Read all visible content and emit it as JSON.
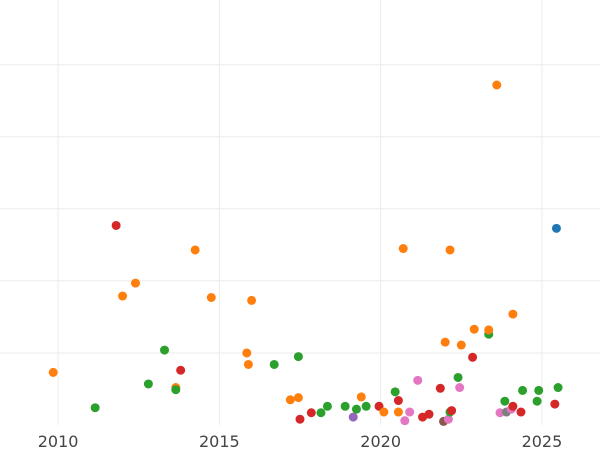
{
  "chart_data": {
    "type": "scatter",
    "xlim": [
      2008.2,
      2026.8
    ],
    "ylim": [
      0,
      590
    ],
    "xticks": [
      {
        "value": 2010,
        "label": "2010"
      },
      {
        "value": 2015,
        "label": "2015"
      },
      {
        "value": 2020,
        "label": "2020"
      },
      {
        "value": 2025,
        "label": "2025"
      }
    ],
    "ygrid": [
      100,
      200,
      300,
      400,
      500
    ],
    "grid": true,
    "colors": {
      "orange": "#ff7f0e",
      "red": "#d62728",
      "green": "#2ca02c",
      "purple": "#9467bd",
      "pink": "#e377c2",
      "blue": "#1f77b4",
      "brown": "#8c564b",
      "gray": "#7f7f7f"
    },
    "points": [
      {
        "x": 2009.85,
        "y": 73,
        "color": "orange"
      },
      {
        "x": 2011.15,
        "y": 24,
        "color": "green"
      },
      {
        "x": 2011.8,
        "y": 277,
        "color": "red"
      },
      {
        "x": 2012.0,
        "y": 179,
        "color": "orange"
      },
      {
        "x": 2012.4,
        "y": 197,
        "color": "orange"
      },
      {
        "x": 2012.8,
        "y": 57,
        "color": "green"
      },
      {
        "x": 2013.3,
        "y": 104,
        "color": "green"
      },
      {
        "x": 2013.65,
        "y": 52,
        "color": "orange"
      },
      {
        "x": 2013.65,
        "y": 49,
        "color": "green"
      },
      {
        "x": 2013.8,
        "y": 76,
        "color": "red"
      },
      {
        "x": 2014.25,
        "y": 243,
        "color": "orange"
      },
      {
        "x": 2014.75,
        "y": 177,
        "color": "orange"
      },
      {
        "x": 2015.85,
        "y": 100,
        "color": "orange"
      },
      {
        "x": 2015.9,
        "y": 84,
        "color": "orange"
      },
      {
        "x": 2016.0,
        "y": 173,
        "color": "orange"
      },
      {
        "x": 2016.7,
        "y": 84,
        "color": "green"
      },
      {
        "x": 2017.2,
        "y": 35,
        "color": "orange"
      },
      {
        "x": 2017.45,
        "y": 38,
        "color": "orange"
      },
      {
        "x": 2017.45,
        "y": 95,
        "color": "green"
      },
      {
        "x": 2017.5,
        "y": 8,
        "color": "red"
      },
      {
        "x": 2017.85,
        "y": 17,
        "color": "red"
      },
      {
        "x": 2018.15,
        "y": 17,
        "color": "green"
      },
      {
        "x": 2018.35,
        "y": 26,
        "color": "green"
      },
      {
        "x": 2018.9,
        "y": 26,
        "color": "green"
      },
      {
        "x": 2019.15,
        "y": 11,
        "color": "purple"
      },
      {
        "x": 2019.25,
        "y": 22,
        "color": "green"
      },
      {
        "x": 2019.4,
        "y": 39,
        "color": "orange"
      },
      {
        "x": 2019.55,
        "y": 26,
        "color": "green"
      },
      {
        "x": 2019.95,
        "y": 26,
        "color": "red"
      },
      {
        "x": 2020.1,
        "y": 18,
        "color": "orange"
      },
      {
        "x": 2020.45,
        "y": 46,
        "color": "green"
      },
      {
        "x": 2020.55,
        "y": 34,
        "color": "red"
      },
      {
        "x": 2020.55,
        "y": 18,
        "color": "orange"
      },
      {
        "x": 2020.7,
        "y": 245,
        "color": "orange"
      },
      {
        "x": 2020.75,
        "y": 6,
        "color": "pink"
      },
      {
        "x": 2020.9,
        "y": 18,
        "color": "pink"
      },
      {
        "x": 2021.15,
        "y": 62,
        "color": "pink"
      },
      {
        "x": 2021.3,
        "y": 11,
        "color": "red"
      },
      {
        "x": 2021.5,
        "y": 15,
        "color": "red"
      },
      {
        "x": 2021.85,
        "y": 51,
        "color": "red"
      },
      {
        "x": 2021.95,
        "y": 5,
        "color": "brown"
      },
      {
        "x": 2022.0,
        "y": 115,
        "color": "orange"
      },
      {
        "x": 2022.1,
        "y": 8,
        "color": "pink"
      },
      {
        "x": 2022.15,
        "y": 18,
        "color": "green"
      },
      {
        "x": 2022.15,
        "y": 243,
        "color": "orange"
      },
      {
        "x": 2022.2,
        "y": 20,
        "color": "red"
      },
      {
        "x": 2022.4,
        "y": 66,
        "color": "green"
      },
      {
        "x": 2022.45,
        "y": 52,
        "color": "pink"
      },
      {
        "x": 2022.5,
        "y": 111,
        "color": "orange"
      },
      {
        "x": 2022.85,
        "y": 94,
        "color": "red"
      },
      {
        "x": 2022.9,
        "y": 133,
        "color": "orange"
      },
      {
        "x": 2023.35,
        "y": 126,
        "color": "green"
      },
      {
        "x": 2023.35,
        "y": 132,
        "color": "orange"
      },
      {
        "x": 2023.6,
        "y": 472,
        "color": "orange"
      },
      {
        "x": 2023.7,
        "y": 17,
        "color": "pink"
      },
      {
        "x": 2023.85,
        "y": 33,
        "color": "green"
      },
      {
        "x": 2023.9,
        "y": 18,
        "color": "gray"
      },
      {
        "x": 2024.05,
        "y": 22,
        "color": "pink"
      },
      {
        "x": 2024.1,
        "y": 26,
        "color": "red"
      },
      {
        "x": 2024.1,
        "y": 154,
        "color": "orange"
      },
      {
        "x": 2024.35,
        "y": 18,
        "color": "red"
      },
      {
        "x": 2024.4,
        "y": 48,
        "color": "green"
      },
      {
        "x": 2024.85,
        "y": 33,
        "color": "green"
      },
      {
        "x": 2024.9,
        "y": 48,
        "color": "green"
      },
      {
        "x": 2025.4,
        "y": 29,
        "color": "red"
      },
      {
        "x": 2025.45,
        "y": 273,
        "color": "blue"
      },
      {
        "x": 2025.5,
        "y": 52,
        "color": "green"
      }
    ]
  }
}
